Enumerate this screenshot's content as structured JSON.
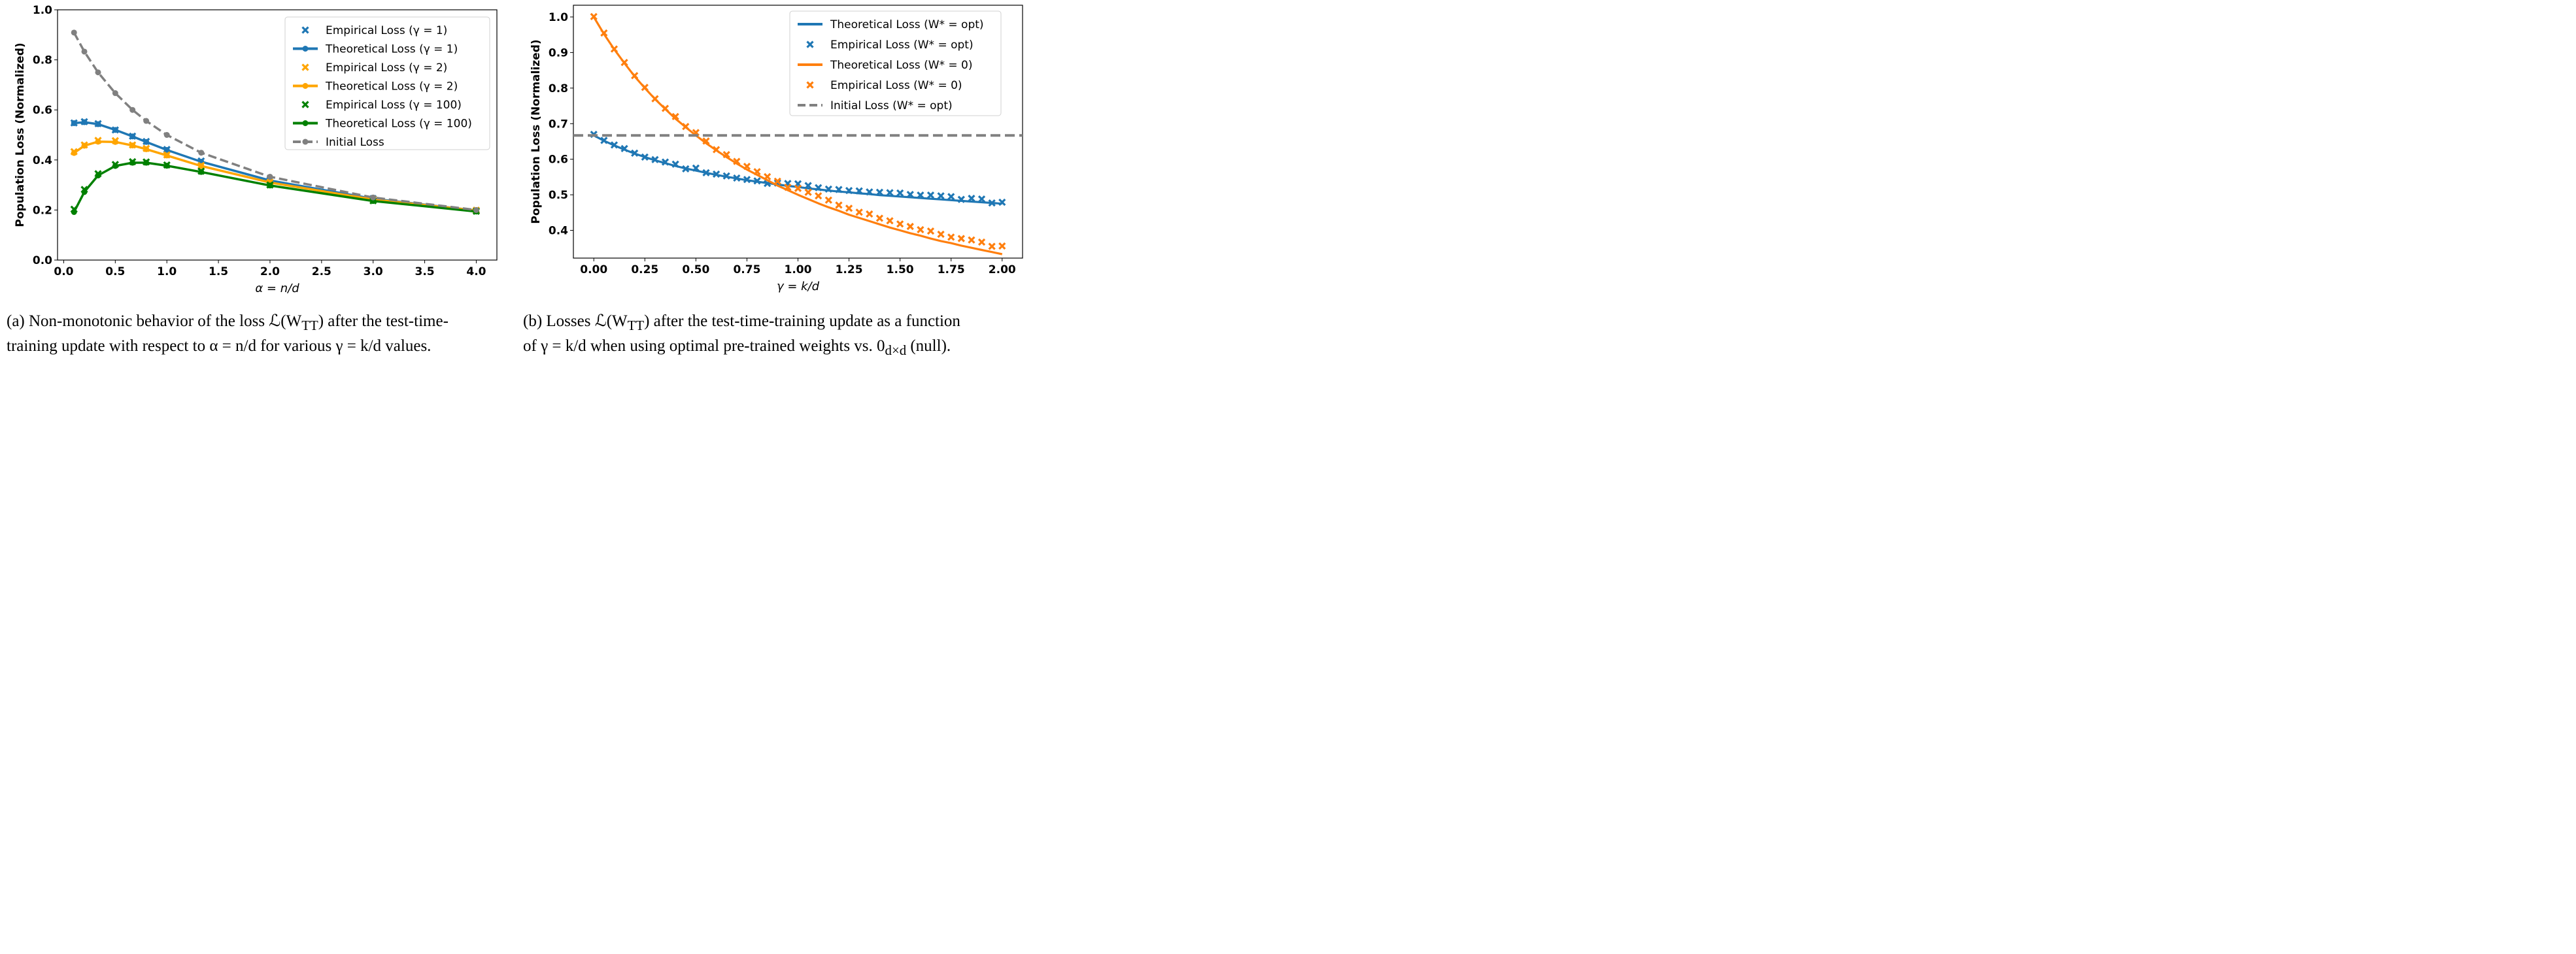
{
  "chart_data": [
    {
      "type": "line",
      "title": "",
      "xlabel": "α = n/d",
      "ylabel": "Population Loss (Normalized)",
      "xlim": [
        -0.06,
        4.2
      ],
      "ylim": [
        0.0,
        1.0
      ],
      "xticks": [
        "0.0",
        "0.5",
        "1.0",
        "1.5",
        "2.0",
        "2.5",
        "3.0",
        "3.5",
        "4.0"
      ],
      "xtick_values": [
        0.0,
        0.5,
        1.0,
        1.5,
        2.0,
        2.5,
        3.0,
        3.5,
        4.0
      ],
      "yticks": [
        "0.0",
        "0.2",
        "0.4",
        "0.6",
        "0.8",
        "1.0"
      ],
      "ytick_values": [
        0.0,
        0.2,
        0.4,
        0.6,
        0.8,
        1.0
      ],
      "grid": false,
      "legend_position": "top-right",
      "x": [
        0.1,
        0.2,
        0.333,
        0.5,
        0.667,
        0.8,
        1.0,
        1.333,
        2.0,
        3.0,
        4.0
      ],
      "series": [
        {
          "name": "Empirical Loss (γ = 1)",
          "kind": "scatter",
          "color": "#1f77b4",
          "values": [
            0.548,
            0.553,
            0.545,
            0.52,
            0.495,
            0.474,
            0.442,
            0.396,
            0.32,
            0.246,
            0.199
          ]
        },
        {
          "name": "Theoretical Loss (γ = 1)",
          "kind": "line",
          "color": "#1f77b4",
          "values": [
            0.547,
            0.551,
            0.543,
            0.52,
            0.494,
            0.472,
            0.44,
            0.393,
            0.318,
            0.245,
            0.198
          ]
        },
        {
          "name": "Empirical Loss (γ = 2)",
          "kind": "scatter",
          "color": "#ffa500",
          "values": [
            0.433,
            0.46,
            0.478,
            0.477,
            0.46,
            0.446,
            0.42,
            0.378,
            0.311,
            0.243,
            0.199
          ]
        },
        {
          "name": "Theoretical Loss (γ = 2)",
          "kind": "line",
          "color": "#ffa500",
          "values": [
            0.428,
            0.457,
            0.473,
            0.472,
            0.458,
            0.443,
            0.418,
            0.376,
            0.31,
            0.242,
            0.198
          ]
        },
        {
          "name": "Empirical Loss (γ = 100)",
          "kind": "scatter",
          "color": "#008000",
          "values": [
            0.203,
            0.282,
            0.345,
            0.382,
            0.393,
            0.392,
            0.38,
            0.355,
            0.3,
            0.237,
            0.195
          ]
        },
        {
          "name": "Theoretical Loss (γ = 100)",
          "kind": "line",
          "color": "#008000",
          "values": [
            0.192,
            0.272,
            0.338,
            0.376,
            0.389,
            0.389,
            0.377,
            0.352,
            0.298,
            0.236,
            0.194
          ]
        },
        {
          "name": "Initial Loss",
          "kind": "dashed",
          "color": "#808080",
          "values": [
            0.909,
            0.833,
            0.75,
            0.667,
            0.6,
            0.556,
            0.5,
            0.429,
            0.333,
            0.25,
            0.2
          ]
        }
      ]
    },
    {
      "type": "line",
      "title": "",
      "xlabel": "γ = k/d",
      "ylabel": "Population Loss (Normalized)",
      "xlim": [
        -0.1,
        2.1
      ],
      "ylim": [
        0.322,
        1.033
      ],
      "xticks": [
        "0.00",
        "0.25",
        "0.50",
        "0.75",
        "1.00",
        "1.25",
        "1.50",
        "1.75",
        "2.00"
      ],
      "xtick_values": [
        0.0,
        0.25,
        0.5,
        0.75,
        1.0,
        1.25,
        1.5,
        1.75,
        2.0
      ],
      "yticks": [
        "0.4",
        "0.5",
        "0.6",
        "0.7",
        "0.8",
        "0.9",
        "1.0"
      ],
      "ytick_values": [
        0.4,
        0.5,
        0.6,
        0.7,
        0.8,
        0.9,
        1.0
      ],
      "grid": false,
      "legend_position": "top-right",
      "x": [
        0.0,
        0.05,
        0.1,
        0.15,
        0.2,
        0.25,
        0.3,
        0.35,
        0.4,
        0.45,
        0.5,
        0.55,
        0.6,
        0.65,
        0.7,
        0.75,
        0.8,
        0.85,
        0.9,
        0.95,
        1.0,
        1.05,
        1.1,
        1.15,
        1.2,
        1.25,
        1.3,
        1.35,
        1.4,
        1.45,
        1.5,
        1.55,
        1.6,
        1.65,
        1.7,
        1.75,
        1.8,
        1.85,
        1.9,
        1.95,
        2.0
      ],
      "series": [
        {
          "name": "Theoretical Loss (W* = opt)",
          "kind": "line",
          "color": "#1f77b4",
          "values": [
            0.667,
            0.652,
            0.639,
            0.627,
            0.616,
            0.606,
            0.597,
            0.589,
            0.581,
            0.574,
            0.568,
            0.562,
            0.556,
            0.551,
            0.546,
            0.541,
            0.537,
            0.533,
            0.529,
            0.525,
            0.522,
            0.518,
            0.515,
            0.512,
            0.509,
            0.507,
            0.504,
            0.502,
            0.499,
            0.497,
            0.495,
            0.493,
            0.491,
            0.489,
            0.487,
            0.485,
            0.483,
            0.481,
            0.479,
            0.477,
            0.475
          ]
        },
        {
          "name": "Empirical Loss (W* = opt)",
          "kind": "scatter",
          "color": "#1f77b4",
          "values": [
            0.67,
            0.653,
            0.64,
            0.63,
            0.617,
            0.606,
            0.599,
            0.592,
            0.586,
            0.573,
            0.575,
            0.562,
            0.558,
            0.553,
            0.547,
            0.543,
            0.539,
            0.532,
            0.533,
            0.532,
            0.531,
            0.526,
            0.52,
            0.516,
            0.515,
            0.512,
            0.511,
            0.508,
            0.507,
            0.506,
            0.505,
            0.501,
            0.499,
            0.499,
            0.497,
            0.495,
            0.487,
            0.49,
            0.488,
            0.477,
            0.479
          ]
        },
        {
          "name": "Theoretical Loss (W* = 0)",
          "kind": "line",
          "color": "#ff7f0e",
          "values": [
            1.0,
            0.952,
            0.909,
            0.87,
            0.833,
            0.8,
            0.769,
            0.741,
            0.714,
            0.69,
            0.667,
            0.645,
            0.625,
            0.606,
            0.588,
            0.571,
            0.556,
            0.541,
            0.526,
            0.513,
            0.5,
            0.488,
            0.476,
            0.465,
            0.455,
            0.444,
            0.435,
            0.426,
            0.417,
            0.408,
            0.4,
            0.392,
            0.385,
            0.377,
            0.37,
            0.364,
            0.357,
            0.351,
            0.345,
            0.339,
            0.333
          ]
        },
        {
          "name": "Empirical Loss (W* = 0)",
          "kind": "scatter",
          "color": "#ff7f0e",
          "values": [
            1.001,
            0.955,
            0.91,
            0.872,
            0.835,
            0.802,
            0.77,
            0.743,
            0.72,
            0.692,
            0.675,
            0.651,
            0.627,
            0.613,
            0.594,
            0.58,
            0.565,
            0.551,
            0.538,
            0.521,
            0.518,
            0.507,
            0.497,
            0.485,
            0.471,
            0.462,
            0.451,
            0.446,
            0.434,
            0.427,
            0.418,
            0.411,
            0.402,
            0.398,
            0.389,
            0.381,
            0.377,
            0.373,
            0.367,
            0.355,
            0.356
          ]
        },
        {
          "name": "Initial Loss (W* = opt)",
          "kind": "hline",
          "color": "#808080",
          "values": [
            0.667
          ]
        }
      ]
    }
  ],
  "captions": {
    "a_line1": "(a) Non-monotonic behavior of the loss ℒ(W",
    "a_sub": "TT",
    "a_line1_rest": ") after the test-time-",
    "a_line2": "training update with respect to α = n/d for various γ = k/d values.",
    "b_line1": "(b) Losses ℒ(W",
    "b_sub": "TT",
    "b_line1_rest": ") after the test-time-training update as a function",
    "b_line2": "of γ = k/d when using optimal pre-trained weights vs. 0",
    "b_sub2": "d×d",
    "b_line2_rest": " (null)."
  }
}
